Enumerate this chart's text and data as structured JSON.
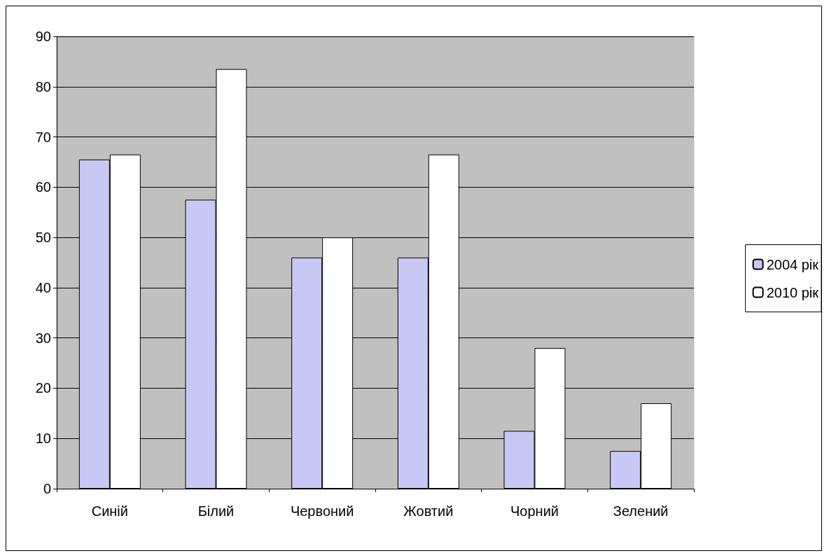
{
  "chart_data": {
    "type": "bar",
    "categories": [
      "Синій",
      "Білий",
      "Червоний",
      "Жовтий",
      "Чорний",
      "Зелений"
    ],
    "series": [
      {
        "name": "2004 рік",
        "color": "#c8c8f4",
        "values": [
          65.5,
          57.5,
          46,
          46,
          11.5,
          7.5
        ]
      },
      {
        "name": "2010 рік",
        "color": "#ffffff",
        "values": [
          66.5,
          83.5,
          50,
          66.5,
          28,
          17
        ]
      }
    ],
    "ylim": [
      0,
      90
    ],
    "yticks": [
      0,
      10,
      20,
      30,
      40,
      50,
      60,
      70,
      80,
      90
    ],
    "grid": "y",
    "legend": "right"
  }
}
